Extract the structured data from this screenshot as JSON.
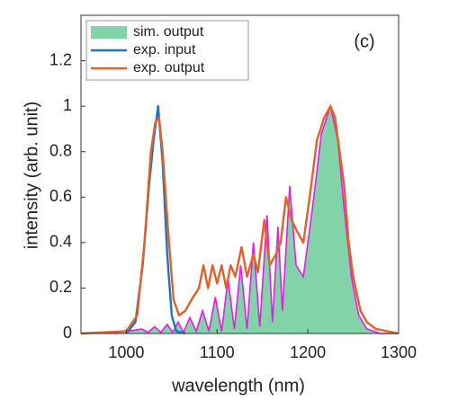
{
  "chart_data": {
    "type": "line",
    "annotation": "(c)",
    "xlabel": "wavelength (nm)",
    "ylabel": "intensity (arb. unit)",
    "xlim": [
      950,
      1300
    ],
    "ylim": [
      0,
      1.4
    ],
    "xticks": [
      1000,
      1100,
      1200,
      1300
    ],
    "yticks": [
      0,
      0.2,
      0.4,
      0.6,
      0.8,
      1,
      1.2
    ],
    "legend": "upper left",
    "series": [
      {
        "name": "sim. output",
        "kind": "area",
        "color": "#82d3a8",
        "edgecolor": "#e31de3",
        "x": [
          950,
          990,
          1000,
          1010,
          1017,
          1024,
          1031,
          1038,
          1045,
          1051,
          1057,
          1063,
          1070,
          1077,
          1084,
          1091,
          1098,
          1105,
          1112,
          1119,
          1126,
          1133,
          1140,
          1147,
          1155,
          1161,
          1167,
          1172,
          1180,
          1187,
          1195,
          1205,
          1215,
          1225,
          1233,
          1240,
          1248,
          1256,
          1265,
          1280,
          1300
        ],
        "values": [
          0,
          0.005,
          0.01,
          0.015,
          0.02,
          0.005,
          0.03,
          0.005,
          0.04,
          0.005,
          0.05,
          0.005,
          0.07,
          0.01,
          0.1,
          0.01,
          0.16,
          0.01,
          0.24,
          0.02,
          0.3,
          0.02,
          0.4,
          0.03,
          0.52,
          0.05,
          0.47,
          0.1,
          0.65,
          0.3,
          0.25,
          0.55,
          0.88,
          1.0,
          0.85,
          0.55,
          0.25,
          0.08,
          0.02,
          0,
          0
        ]
      },
      {
        "name": "exp. input",
        "kind": "line",
        "color": "#1f74c0",
        "x": [
          1000,
          1010,
          1018,
          1025,
          1030,
          1035,
          1040,
          1045,
          1050,
          1055,
          1065
        ],
        "values": [
          0,
          0.05,
          0.3,
          0.65,
          0.85,
          1.0,
          0.75,
          0.35,
          0.08,
          0.01,
          0
        ]
      },
      {
        "name": "exp. output",
        "kind": "line",
        "color": "#e0612a",
        "x": [
          950,
          1000,
          1012,
          1020,
          1027,
          1032,
          1036,
          1040,
          1046,
          1052,
          1058,
          1065,
          1072,
          1080,
          1085,
          1090,
          1095,
          1100,
          1105,
          1110,
          1115,
          1120,
          1127,
          1133,
          1140,
          1145,
          1152,
          1158,
          1165,
          1170,
          1176,
          1182,
          1188,
          1195,
          1202,
          1210,
          1218,
          1225,
          1230,
          1235,
          1240,
          1245,
          1250,
          1258,
          1265,
          1275,
          1300
        ],
        "values": [
          0,
          0.01,
          0.08,
          0.4,
          0.8,
          0.93,
          0.95,
          0.8,
          0.45,
          0.15,
          0.08,
          0.1,
          0.15,
          0.2,
          0.3,
          0.2,
          0.3,
          0.22,
          0.3,
          0.2,
          0.3,
          0.25,
          0.38,
          0.25,
          0.35,
          0.27,
          0.5,
          0.3,
          0.35,
          0.4,
          0.6,
          0.5,
          0.45,
          0.4,
          0.6,
          0.85,
          0.95,
          1.0,
          0.95,
          0.8,
          0.65,
          0.4,
          0.25,
          0.1,
          0.05,
          0.02,
          0
        ]
      }
    ]
  }
}
